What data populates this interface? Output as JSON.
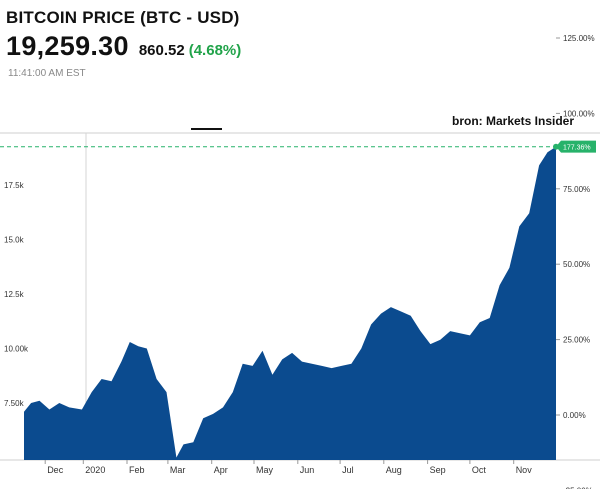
{
  "header": {
    "title": "BITCOIN PRICE (BTC - USD)",
    "price": "19,259.30",
    "change": "860.52",
    "change_pct": "(4.68%)",
    "timestamp": "11:41:00 AM EST"
  },
  "source": "bron: Markets Insider",
  "colors": {
    "area": "#0b4b8f",
    "positive": "#21a34a",
    "badge": "#27b26a"
  },
  "chart_data": {
    "type": "area",
    "x_tick_labels": [
      "Dec",
      "2020",
      "Feb",
      "Mar",
      "Apr",
      "May",
      "Jun",
      "Jul",
      "Aug",
      "Sep",
      "Oct",
      "Nov"
    ],
    "y_left_ticks": [
      "7.50k",
      "10.00k",
      "12.5k",
      "15.0k",
      "17.5k"
    ],
    "y_right_ticks": [
      "-25.00%",
      "0.00%",
      "25.00%",
      "50.00%",
      "75.00%",
      "100.00%",
      "125.00%",
      "150.00%"
    ],
    "ylim": [
      6000,
      19600
    ],
    "current_change_label": "177.36%",
    "x": [
      "2019-11-20",
      "2019-11-25",
      "2019-12-01",
      "2019-12-08",
      "2019-12-15",
      "2019-12-22",
      "2019-12-31",
      "2020-01-07",
      "2020-01-14",
      "2020-01-21",
      "2020-01-28",
      "2020-02-03",
      "2020-02-09",
      "2020-02-15",
      "2020-02-22",
      "2020-02-29",
      "2020-03-07",
      "2020-03-12",
      "2020-03-19",
      "2020-03-26",
      "2020-04-02",
      "2020-04-09",
      "2020-04-16",
      "2020-04-23",
      "2020-04-30",
      "2020-05-07",
      "2020-05-14",
      "2020-05-21",
      "2020-05-28",
      "2020-06-04",
      "2020-06-11",
      "2020-06-18",
      "2020-06-25",
      "2020-07-02",
      "2020-07-09",
      "2020-07-16",
      "2020-07-23",
      "2020-07-30",
      "2020-08-06",
      "2020-08-13",
      "2020-08-20",
      "2020-08-27",
      "2020-09-03",
      "2020-09-10",
      "2020-09-17",
      "2020-09-24",
      "2020-10-01",
      "2020-10-08",
      "2020-10-15",
      "2020-10-22",
      "2020-10-29",
      "2020-11-05",
      "2020-11-12",
      "2020-11-19",
      "2020-11-25",
      "2020-12-01"
    ],
    "values": [
      7100,
      7500,
      7600,
      7200,
      7500,
      7300,
      7200,
      8000,
      8600,
      8500,
      9400,
      10300,
      10100,
      10000,
      8600,
      8000,
      5000,
      5600,
      5700,
      6800,
      7000,
      7300,
      8000,
      9300,
      9200,
      9900,
      8800,
      9500,
      9800,
      9400,
      9300,
      9200,
      9100,
      9200,
      9300,
      10000,
      11100,
      11600,
      11900,
      11700,
      11500,
      10800,
      10200,
      10400,
      10800,
      10700,
      10600,
      11200,
      11400,
      12900,
      13700,
      15600,
      16200,
      18400,
      19000,
      19259
    ]
  }
}
